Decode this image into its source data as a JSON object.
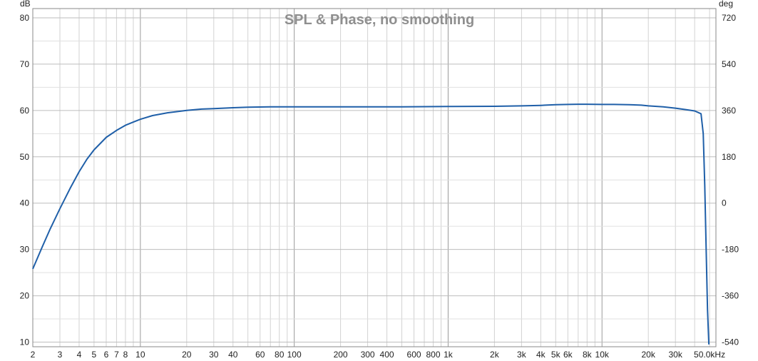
{
  "chart_data": {
    "type": "line",
    "title": "SPL & Phase, no smoothing",
    "y_unit_left": "dB",
    "y_unit_right": "deg",
    "x_scale": "log",
    "xlim": [
      2,
      55000
    ],
    "ylim": [
      9,
      82
    ],
    "y_ticks": [
      10,
      20,
      30,
      40,
      50,
      60,
      70,
      80
    ],
    "y2_ticks": [
      -540,
      -360,
      -180,
      0,
      180,
      360,
      540,
      720
    ],
    "x_tick_labels": [
      {
        "v": 2,
        "label": "2"
      },
      {
        "v": 3,
        "label": "3"
      },
      {
        "v": 4,
        "label": "4"
      },
      {
        "v": 5,
        "label": "5"
      },
      {
        "v": 6,
        "label": "6"
      },
      {
        "v": 7,
        "label": "7"
      },
      {
        "v": 8,
        "label": "8"
      },
      {
        "v": 10,
        "label": "10"
      },
      {
        "v": 20,
        "label": "20"
      },
      {
        "v": 30,
        "label": "30"
      },
      {
        "v": 40,
        "label": "40"
      },
      {
        "v": 60,
        "label": "60"
      },
      {
        "v": 80,
        "label": "80"
      },
      {
        "v": 100,
        "label": "100"
      },
      {
        "v": 200,
        "label": "200"
      },
      {
        "v": 300,
        "label": "300"
      },
      {
        "v": 400,
        "label": "400"
      },
      {
        "v": 600,
        "label": "600"
      },
      {
        "v": 800,
        "label": "800"
      },
      {
        "v": 1000,
        "label": "1k"
      },
      {
        "v": 2000,
        "label": "2k"
      },
      {
        "v": 3000,
        "label": "3k"
      },
      {
        "v": 4000,
        "label": "4k"
      },
      {
        "v": 5000,
        "label": "5k"
      },
      {
        "v": 6000,
        "label": "6k"
      },
      {
        "v": 8000,
        "label": "8k"
      },
      {
        "v": 10000,
        "label": "10k"
      },
      {
        "v": 20000,
        "label": "20k"
      },
      {
        "v": 30000,
        "label": "30k"
      },
      {
        "v": 50000,
        "label": "50.0kHz"
      }
    ],
    "grid": true,
    "legend": "none",
    "series": [
      {
        "color": "#1f5fa8",
        "x": [
          2,
          2.3,
          2.6,
          3,
          3.5,
          4,
          4.5,
          5,
          6,
          7,
          8,
          9,
          10,
          12,
          15,
          20,
          25,
          30,
          40,
          50,
          70,
          100,
          200,
          500,
          1000,
          2000,
          3000,
          4000,
          5000,
          6000,
          7000,
          8000,
          10000,
          12000,
          15000,
          18000,
          20000,
          25000,
          30000,
          35000,
          40000,
          44000,
          45500,
          46500,
          47500,
          48500,
          49500
        ],
        "y": [
          25.8,
          30.5,
          34.5,
          38.8,
          43.2,
          46.8,
          49.5,
          51.5,
          54.2,
          55.7,
          56.8,
          57.5,
          58.1,
          58.9,
          59.5,
          60.0,
          60.3,
          60.4,
          60.6,
          60.7,
          60.8,
          60.8,
          60.8,
          60.8,
          60.85,
          60.9,
          61.0,
          61.1,
          61.25,
          61.3,
          61.35,
          61.35,
          61.3,
          61.3,
          61.25,
          61.15,
          61.0,
          60.8,
          60.5,
          60.2,
          59.9,
          59.3,
          55.0,
          44.0,
          30.0,
          17.0,
          9.5
        ]
      }
    ]
  }
}
